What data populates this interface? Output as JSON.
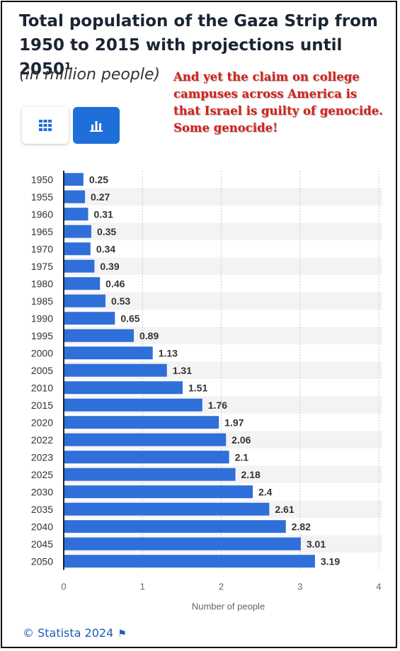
{
  "title": "Total population of the Gaza Strip from 1950 to 2015 with projections until 2050¹",
  "subtitle": "(in million people)",
  "annotation": "And yet the claim on college campuses across America is that Israel is guilty of genocide. Some genocide!",
  "toolbar": {
    "table_icon": "grid-icon",
    "chart_icon": "bar-chart-icon"
  },
  "footer": {
    "copyright": "© Statista 2024",
    "flag_icon": "flag-icon"
  },
  "colors": {
    "bar": "#2e6fd9",
    "accent": "#1f6fd9",
    "annotation": "#d8201a"
  },
  "chart_data": {
    "type": "bar",
    "orientation": "horizontal",
    "categories": [
      "1950",
      "1955",
      "1960",
      "1965",
      "1970",
      "1975",
      "1980",
      "1985",
      "1990",
      "1995",
      "2000",
      "2005",
      "2010",
      "2015",
      "2020",
      "2022",
      "2023",
      "2025",
      "2030",
      "2035",
      "2040",
      "2045",
      "2050"
    ],
    "values": [
      0.25,
      0.27,
      0.31,
      0.35,
      0.34,
      0.39,
      0.46,
      0.53,
      0.65,
      0.89,
      1.13,
      1.31,
      1.51,
      1.76,
      1.97,
      2.06,
      2.1,
      2.18,
      2.4,
      2.61,
      2.82,
      3.01,
      3.19
    ],
    "value_labels": [
      "0.25",
      "0.27",
      "0.31",
      "0.35",
      "0.34",
      "0.39",
      "0.46",
      "0.53",
      "0.65",
      "0.89",
      "1.13",
      "1.31",
      "1.51",
      "1.76",
      "1.97",
      "2.06",
      "2.1",
      "2.18",
      "2.4",
      "2.61",
      "2.82",
      "3.01",
      "3.19"
    ],
    "xlabel": "Number of people",
    "xlim": [
      0,
      4
    ],
    "xticks": [
      "0",
      "1",
      "2",
      "3",
      "4"
    ],
    "grid": true
  }
}
